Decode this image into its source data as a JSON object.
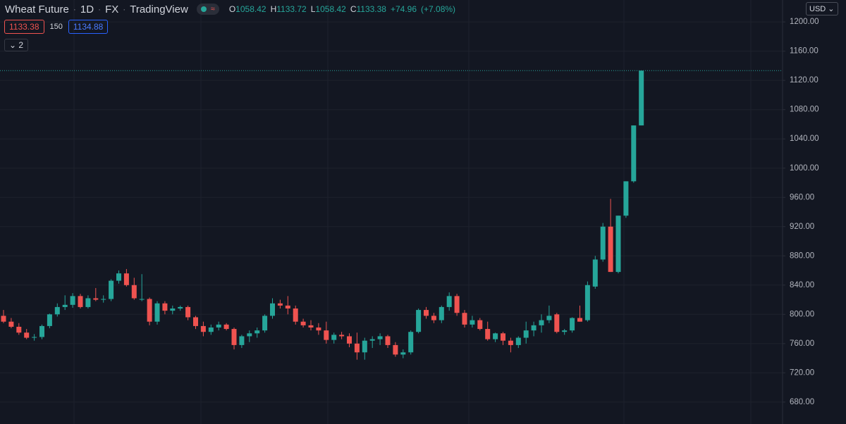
{
  "chart_data": {
    "type": "candlestick",
    "title": "Wheat Future",
    "interval": "1D",
    "exchange": "FX",
    "source": "TradingView",
    "legend": {
      "open_label": "O",
      "open": 1058.42,
      "high_label": "H",
      "high": 1133.72,
      "low_label": "L",
      "low": 1058.42,
      "close_label": "C",
      "close": 1133.38,
      "change": {
        "value": 74.96,
        "label": "+74.96"
      },
      "change_pct": {
        "value": 7.08,
        "label": "(+7.08%)"
      }
    },
    "bid": 1133.38,
    "spread": 150,
    "ask": 1134.88,
    "indicators_count": 2,
    "currency": "USD",
    "up_color": "#26a69a",
    "down_color": "#ef5350",
    "grid": true,
    "ylim": [
      650,
      1230
    ],
    "yticks": [
      {
        "value": 680,
        "label": "680.00"
      },
      {
        "value": 720,
        "label": "720.00"
      },
      {
        "value": 760,
        "label": "760.00"
      },
      {
        "value": 800,
        "label": "800.00"
      },
      {
        "value": 840,
        "label": "840.00"
      },
      {
        "value": 880,
        "label": "880.00"
      },
      {
        "value": 920,
        "label": "920.00"
      },
      {
        "value": 960,
        "label": "960.00"
      },
      {
        "value": 1000,
        "label": "1000.00"
      },
      {
        "value": 1040,
        "label": "1040.00"
      },
      {
        "value": 1080,
        "label": "1080.00"
      },
      {
        "value": 1120,
        "label": "1120.00"
      },
      {
        "value": 1160,
        "label": "1160.00"
      },
      {
        "value": 1200,
        "label": "1200.00"
      }
    ],
    "open": [
      798,
      790,
      783,
      775,
      768,
      769,
      784,
      800,
      810,
      813,
      825,
      810,
      822,
      820,
      821,
      846,
      856,
      840,
      820,
      821,
      790,
      815,
      805,
      808,
      810,
      796,
      784,
      776,
      782,
      786,
      780,
      758,
      770,
      774,
      778,
      798,
      815,
      812,
      808,
      790,
      785,
      782,
      778,
      765,
      772,
      770,
      760,
      748,
      764,
      766,
      770,
      758,
      745,
      748,
      776,
      806,
      798,
      792,
      810,
      825,
      802,
      786,
      792,
      780,
      766,
      774,
      764,
      758,
      768,
      778,
      785,
      792,
      800,
      776,
      778,
      795,
      792,
      838,
      875,
      920,
      858,
      935,
      982,
      1058.42
    ],
    "high": [
      806,
      795,
      788,
      780,
      773,
      786,
      801,
      815,
      826,
      829,
      828,
      826,
      836,
      826,
      848,
      860,
      862,
      850,
      855,
      823,
      818,
      818,
      812,
      812,
      812,
      798,
      790,
      786,
      790,
      788,
      782,
      772,
      778,
      782,
      800,
      822,
      820,
      825,
      812,
      794,
      792,
      788,
      790,
      775,
      776,
      774,
      775,
      768,
      770,
      774,
      772,
      762,
      752,
      778,
      808,
      810,
      802,
      812,
      830,
      828,
      806,
      798,
      795,
      790,
      775,
      776,
      768,
      770,
      790,
      790,
      800,
      812,
      802,
      780,
      796,
      812,
      845,
      880,
      925,
      958,
      935,
      982,
      1058.42,
      1133.72
    ],
    "low": [
      788,
      781,
      772,
      766,
      764,
      766,
      781,
      797,
      806,
      809,
      808,
      808,
      818,
      816,
      818,
      842,
      838,
      820,
      818,
      785,
      786,
      800,
      800,
      805,
      792,
      780,
      770,
      772,
      778,
      778,
      752,
      754,
      762,
      768,
      775,
      794,
      808,
      800,
      786,
      782,
      778,
      772,
      760,
      760,
      766,
      755,
      738,
      738,
      754,
      758,
      754,
      742,
      740,
      745,
      774,
      794,
      788,
      788,
      805,
      798,
      782,
      782,
      778,
      764,
      762,
      758,
      748,
      754,
      760,
      770,
      775,
      788,
      774,
      772,
      775,
      790,
      790,
      835,
      872,
      858,
      856,
      932,
      980,
      1058.42
    ],
    "close": [
      790,
      783,
      775,
      768,
      769,
      784,
      800,
      810,
      813,
      825,
      810,
      822,
      820,
      821,
      846,
      856,
      840,
      822,
      821,
      790,
      815,
      805,
      808,
      810,
      796,
      784,
      776,
      782,
      786,
      780,
      758,
      770,
      774,
      778,
      798,
      815,
      812,
      808,
      790,
      785,
      782,
      778,
      765,
      772,
      770,
      760,
      748,
      764,
      766,
      770,
      758,
      745,
      748,
      776,
      806,
      798,
      792,
      810,
      825,
      802,
      786,
      792,
      780,
      766,
      774,
      764,
      758,
      768,
      778,
      785,
      792,
      798,
      776,
      778,
      795,
      790,
      840,
      875,
      920,
      858,
      935,
      982,
      1058.42,
      1133.38
    ]
  }
}
